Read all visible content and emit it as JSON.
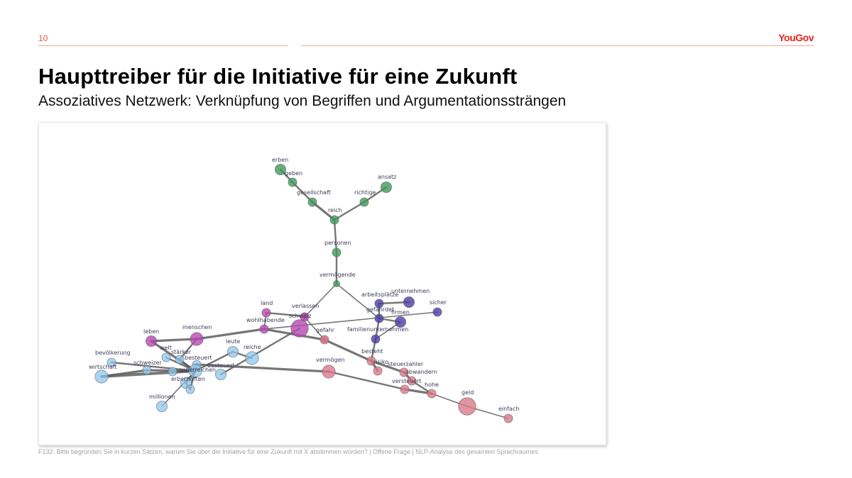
{
  "header": {
    "page_number": "10",
    "logo": "YouGov",
    "accent_color": "#e35d3c"
  },
  "title": "Haupttreiber für die Initiative für eine Zukunft",
  "subtitle": "Assoziatives Netzwerk: Verknüpfung von Begriffen und Argumentationssträngen",
  "network": {
    "cluster_colors": {
      "green": "#3e9a5a",
      "purple": "#4a3fa6",
      "magenta": "#b64ab2",
      "red": "#d97a8a",
      "blue": "#8ec6ea"
    },
    "nodes": [
      {
        "id": "erben",
        "label": "erben",
        "cluster": "green",
        "weight": 3
      },
      {
        "id": "geben",
        "label": "geben",
        "cluster": "green",
        "weight": 2
      },
      {
        "id": "ansatz",
        "label": "ansatz",
        "cluster": "green",
        "weight": 3
      },
      {
        "id": "gesellschaft",
        "label": "gesellschaft",
        "cluster": "green",
        "weight": 2
      },
      {
        "id": "richtige",
        "label": "richtige",
        "cluster": "green",
        "weight": 2
      },
      {
        "id": "reich",
        "label": "reich",
        "cluster": "green",
        "weight": 2
      },
      {
        "id": "personen",
        "label": "personen",
        "cluster": "green",
        "weight": 2
      },
      {
        "id": "vermoegende",
        "label": "vermögende",
        "cluster": "green",
        "weight": 1
      },
      {
        "id": "arbeitsplaetze",
        "label": "arbeitsplätze",
        "cluster": "purple",
        "weight": 2
      },
      {
        "id": "unternehmen",
        "label": "unternehmen",
        "cluster": "purple",
        "weight": 3
      },
      {
        "id": "sicher",
        "label": "sicher",
        "cluster": "purple",
        "weight": 2
      },
      {
        "id": "gefaehrdet",
        "label": "gefährdet",
        "cluster": "purple",
        "weight": 2
      },
      {
        "id": "firmen",
        "label": "firmen",
        "cluster": "purple",
        "weight": 3
      },
      {
        "id": "familienunternehmen",
        "label": "familienunternehmen",
        "cluster": "purple",
        "weight": 2
      },
      {
        "id": "land",
        "label": "land",
        "cluster": "magenta",
        "weight": 2
      },
      {
        "id": "verlassen",
        "label": "verlassen",
        "cluster": "magenta",
        "weight": 1
      },
      {
        "id": "schweiz",
        "label": "schweiz",
        "cluster": "magenta",
        "weight": 2
      },
      {
        "id": "wohlhabende",
        "label": "wohlhabende",
        "cluster": "magenta",
        "weight": 2
      },
      {
        "id": "gefahr",
        "label": "gefahr",
        "cluster": "magenta",
        "weight": 1
      },
      {
        "id": "menschen",
        "label": "menschen",
        "cluster": "magenta",
        "weight": 4
      },
      {
        "id": "leben",
        "label": "leben",
        "cluster": "magenta",
        "weight": 3
      },
      {
        "id": "schweiz_hub",
        "label": "",
        "cluster": "magenta",
        "weight": 6
      },
      {
        "id": "gefahr_red",
        "label": "",
        "cluster": "red",
        "weight": 2
      },
      {
        "id": "besteht",
        "label": "besteht",
        "cluster": "red",
        "weight": 2
      },
      {
        "id": "vermoegen",
        "label": "vermögen",
        "cluster": "red",
        "weight": 4
      },
      {
        "id": "risiko",
        "label": "risiko",
        "cluster": "red",
        "weight": 2
      },
      {
        "id": "steuerzahler",
        "label": "steuerzahler",
        "cluster": "red",
        "weight": 2
      },
      {
        "id": "abwandern",
        "label": "abwandern",
        "cluster": "red",
        "weight": 2
      },
      {
        "id": "versteuert",
        "label": "versteuert",
        "cluster": "red",
        "weight": 2
      },
      {
        "id": "hohe",
        "label": "hohe",
        "cluster": "red",
        "weight": 2
      },
      {
        "id": "geld",
        "label": "geld",
        "cluster": "red",
        "weight": 6
      },
      {
        "id": "einfach",
        "label": "einfach",
        "cluster": "red",
        "weight": 2
      },
      {
        "id": "welt",
        "label": "welt",
        "cluster": "blue",
        "weight": 2
      },
      {
        "id": "bevoelkerung",
        "label": "bevölkerung",
        "cluster": "blue",
        "weight": 2
      },
      {
        "id": "staerker",
        "label": "stärker",
        "cluster": "blue",
        "weight": 2
      },
      {
        "id": "leute",
        "label": "leute",
        "cluster": "blue",
        "weight": 3
      },
      {
        "id": "reiche",
        "label": "reiche",
        "cluster": "blue",
        "weight": 4
      },
      {
        "id": "schweizer",
        "label": "schweizer",
        "cluster": "blue",
        "weight": 2
      },
      {
        "id": "besteuert_a",
        "label": "besteuert",
        "cluster": "blue",
        "weight": 2
      },
      {
        "id": "besteuert_b",
        "label": "besteuert",
        "cluster": "blue",
        "weight": 3
      },
      {
        "id": "wirtschaft",
        "label": "wirtschaft",
        "cluster": "blue",
        "weight": 4
      },
      {
        "id": "superreichen",
        "label": "superreichen",
        "cluster": "blue",
        "weight": 4
      },
      {
        "id": "superreichen_b",
        "label": "",
        "cluster": "blue",
        "weight": 2
      },
      {
        "id": "erbschaften",
        "label": "erbschaften",
        "cluster": "blue",
        "weight": 3
      },
      {
        "id": "erbschaften_b",
        "label": "",
        "cluster": "blue",
        "weight": 2
      },
      {
        "id": "millionen",
        "label": "millionen",
        "cluster": "blue",
        "weight": 3
      }
    ],
    "edges": [
      {
        "source": "erben",
        "target": "geben",
        "weight": 2
      },
      {
        "source": "geben",
        "target": "gesellschaft",
        "weight": 2
      },
      {
        "source": "gesellschaft",
        "target": "reich",
        "weight": 3
      },
      {
        "source": "ansatz",
        "target": "richtige",
        "weight": 2
      },
      {
        "source": "richtige",
        "target": "reich",
        "weight": 2
      },
      {
        "source": "reich",
        "target": "personen",
        "weight": 2
      },
      {
        "source": "personen",
        "target": "vermoegende",
        "weight": 2
      },
      {
        "source": "vermoegende",
        "target": "schweiz",
        "weight": 1
      },
      {
        "source": "vermoegende",
        "target": "gefaehrdet",
        "weight": 1
      },
      {
        "source": "arbeitsplaetze",
        "target": "unternehmen",
        "weight": 2
      },
      {
        "source": "arbeitsplaetze",
        "target": "gefaehrdet",
        "weight": 2
      },
      {
        "source": "gefaehrdet",
        "target": "firmen",
        "weight": 2
      },
      {
        "source": "gefaehrdet",
        "target": "familienunternehmen",
        "weight": 2
      },
      {
        "source": "familienunternehmen",
        "target": "besteht",
        "weight": 2
      },
      {
        "source": "firmen",
        "target": "familienunternehmen",
        "weight": 1
      },
      {
        "source": "sicher",
        "target": "wohlhabende",
        "weight": 1
      },
      {
        "source": "land",
        "target": "verlassen",
        "weight": 2
      },
      {
        "source": "land",
        "target": "wohlhabende",
        "weight": 1
      },
      {
        "source": "verlassen",
        "target": "schweiz",
        "weight": 2
      },
      {
        "source": "schweiz",
        "target": "gefahr_red",
        "weight": 1
      },
      {
        "source": "wohlhabende",
        "target": "gefahr_red",
        "weight": 3
      },
      {
        "source": "wohlhabende",
        "target": "menschen",
        "weight": 3
      },
      {
        "source": "menschen",
        "target": "leben",
        "weight": 3
      },
      {
        "source": "menschen",
        "target": "staerker",
        "weight": 2
      },
      {
        "source": "schweiz_hub",
        "target": "besteuert_b",
        "weight": 2
      },
      {
        "source": "gefahr_red",
        "target": "besteht",
        "weight": 3
      },
      {
        "source": "besteht",
        "target": "risiko",
        "weight": 3
      },
      {
        "source": "besteht",
        "target": "steuerzahler",
        "weight": 3
      },
      {
        "source": "steuerzahler",
        "target": "abwandern",
        "weight": 3
      },
      {
        "source": "abwandern",
        "target": "hohe",
        "weight": 2
      },
      {
        "source": "versteuert",
        "target": "hohe",
        "weight": 3
      },
      {
        "source": "hohe",
        "target": "geld",
        "weight": 1
      },
      {
        "source": "geld",
        "target": "einfach",
        "weight": 1
      },
      {
        "source": "vermoegen",
        "target": "versteuert",
        "weight": 2
      },
      {
        "source": "vermoegen",
        "target": "besteuert_a",
        "weight": 3
      },
      {
        "source": "leben",
        "target": "superreichen",
        "weight": 3
      },
      {
        "source": "welt",
        "target": "superreichen",
        "weight": 2
      },
      {
        "source": "bevoelkerung",
        "target": "superreichen",
        "weight": 2
      },
      {
        "source": "staerker",
        "target": "superreichen",
        "weight": 2
      },
      {
        "source": "leute",
        "target": "reiche",
        "weight": 2
      },
      {
        "source": "leute",
        "target": "superreichen",
        "weight": 2
      },
      {
        "source": "wirtschaft",
        "target": "superreichen",
        "weight": 4
      },
      {
        "source": "wirtschaft",
        "target": "schweizer",
        "weight": 3
      },
      {
        "source": "schweizer",
        "target": "superreichen",
        "weight": 3
      },
      {
        "source": "superreichen",
        "target": "besteuert_a",
        "weight": 4
      },
      {
        "source": "superreichen",
        "target": "erbschaften",
        "weight": 3
      },
      {
        "source": "superreichen",
        "target": "superreichen_b",
        "weight": 2
      },
      {
        "source": "erbschaften",
        "target": "erbschaften_b",
        "weight": 2
      },
      {
        "source": "erbschaften_b",
        "target": "besteuert_a",
        "weight": 2
      },
      {
        "source": "superreichen",
        "target": "millionen",
        "weight": 1
      }
    ]
  },
  "footnote": "F132: Bitte begründen Sie in kurzen Sätzen, warum Sie über die Initiative für eine Zukunft mit X abstimmen würden? | Offene Frage | NLP-Analyse des gesamten Sprachraumes"
}
